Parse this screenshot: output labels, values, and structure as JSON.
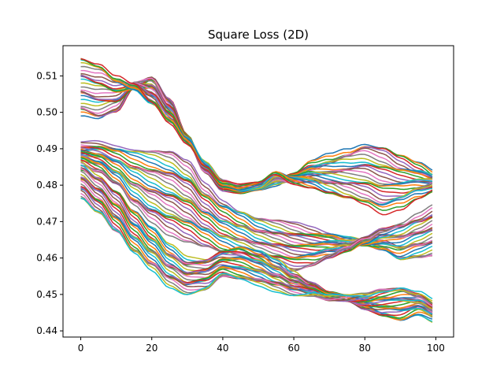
{
  "chart_data": {
    "type": "line",
    "title": "Square Loss (2D)",
    "xlabel": "",
    "ylabel": "",
    "xlim": [
      -5,
      105
    ],
    "ylim": [
      0.4383,
      0.5183
    ],
    "xticks": [
      0,
      20,
      40,
      60,
      80,
      100
    ],
    "yticks": [
      0.44,
      0.45,
      0.46,
      0.47,
      0.48,
      0.49,
      0.5,
      0.51
    ],
    "xtick_labels": [
      "0",
      "20",
      "40",
      "60",
      "80",
      "100"
    ],
    "ytick_labels": [
      "0.44",
      "0.45",
      "0.46",
      "0.47",
      "0.48",
      "0.49",
      "0.50",
      "0.51"
    ],
    "grid": false,
    "legend": "none",
    "x_knots": [
      0,
      5,
      10,
      15,
      20,
      25,
      30,
      35,
      40,
      45,
      50,
      55,
      60,
      65,
      70,
      75,
      80,
      85,
      90,
      95,
      100
    ],
    "series_count": 100,
    "series_families": [
      {
        "role": "upper-bundle",
        "start": [
          0.499,
          0.4975,
          0.5,
          0.5075,
          0.51,
          0.5035,
          0.493,
          0.484,
          0.479,
          0.4785,
          0.4795,
          0.4805,
          0.4825,
          0.486,
          0.488,
          0.49,
          0.492,
          0.491,
          0.488,
          0.4855,
          0.483
        ],
        "end": [
          0.5155,
          0.514,
          0.51,
          0.507,
          0.502,
          0.497,
          0.492,
          0.486,
          0.481,
          0.4795,
          0.48,
          0.483,
          0.481,
          0.48,
          0.478,
          0.476,
          0.474,
          0.472,
          0.474,
          0.477,
          0.479
        ]
      },
      {
        "role": "middle-bundle",
        "start": [
          0.491,
          0.4915,
          0.491,
          0.4905,
          0.49,
          0.489,
          0.486,
          0.48,
          0.476,
          0.4735,
          0.471,
          0.47,
          0.469,
          0.468,
          0.467,
          0.4655,
          0.464,
          0.462,
          0.459,
          0.46,
          0.461
        ],
        "end": [
          0.486,
          0.484,
          0.48,
          0.474,
          0.47,
          0.467,
          0.465,
          0.463,
          0.461,
          0.46,
          0.459,
          0.458,
          0.457,
          0.458,
          0.46,
          0.462,
          0.465,
          0.468,
          0.47,
          0.472,
          0.474
        ]
      },
      {
        "role": "lower-bundle",
        "start": [
          0.486,
          0.483,
          0.479,
          0.473,
          0.468,
          0.463,
          0.46,
          0.46,
          0.462,
          0.463,
          0.4615,
          0.459,
          0.456,
          0.453,
          0.45,
          0.449,
          0.446,
          0.444,
          0.443,
          0.445,
          0.443
        ],
        "end": [
          0.4765,
          0.472,
          0.466,
          0.46,
          0.456,
          0.452,
          0.45,
          0.451,
          0.4545,
          0.453,
          0.452,
          0.451,
          0.45,
          0.45,
          0.449,
          0.449,
          0.45,
          0.452,
          0.453,
          0.451,
          0.448
        ]
      }
    ],
    "colors": [
      "#1f77b4",
      "#ff7f0e",
      "#2ca02c",
      "#d62728",
      "#9467bd",
      "#8c564b",
      "#e377c2",
      "#7f7f7f",
      "#bcbd22",
      "#17becf"
    ]
  }
}
